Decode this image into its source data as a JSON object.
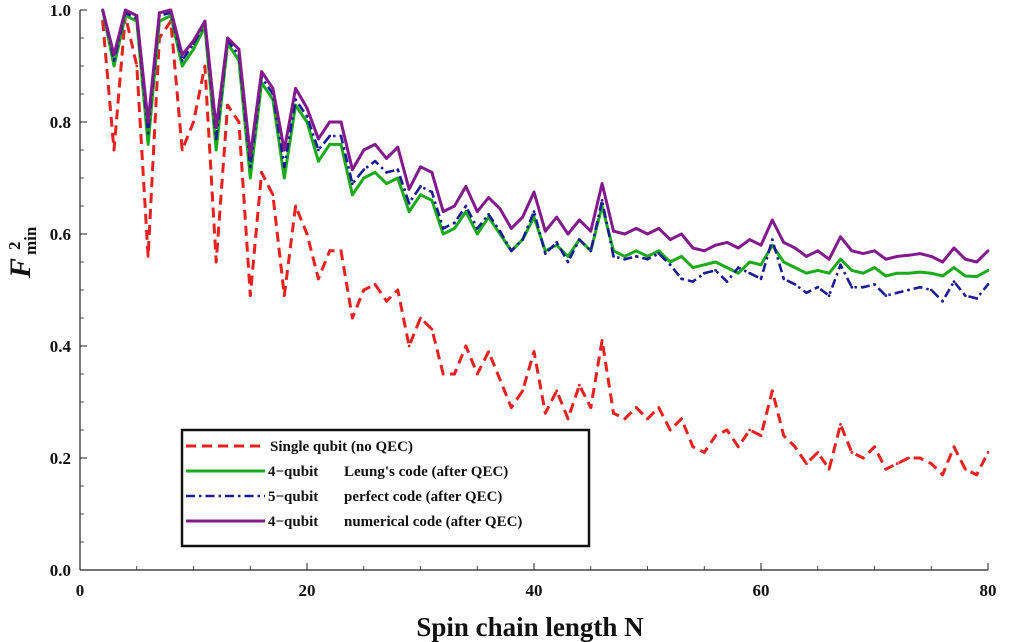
{
  "chart_data": {
    "type": "line",
    "title": "",
    "xlabel": "Spin chain length N",
    "ylabel": {
      "base": "F",
      "superscript": "2",
      "subscript": "min"
    },
    "xlim": [
      0,
      80
    ],
    "ylim": [
      0,
      1.0
    ],
    "xticks": [
      "0",
      "20",
      "40",
      "60",
      "80"
    ],
    "yticks": [
      "0.0",
      "0.2",
      "0.4",
      "0.6",
      "0.8",
      "1.0"
    ],
    "grid": false,
    "legend_position": "bottom-left",
    "x": [
      2,
      3,
      4,
      5,
      6,
      7,
      8,
      9,
      10,
      11,
      12,
      13,
      14,
      15,
      16,
      17,
      18,
      19,
      20,
      21,
      22,
      23,
      24,
      25,
      26,
      27,
      28,
      29,
      30,
      31,
      32,
      33,
      34,
      35,
      36,
      37,
      38,
      39,
      40,
      41,
      42,
      43,
      44,
      45,
      46,
      47,
      48,
      49,
      50,
      51,
      52,
      53,
      54,
      55,
      56,
      57,
      58,
      59,
      60,
      61,
      62,
      63,
      64,
      65,
      66,
      67,
      68,
      69,
      70,
      71,
      72,
      73,
      74,
      75,
      76,
      77,
      78,
      79,
      80
    ],
    "series": [
      {
        "name": "single",
        "legend": {
          "prefix": "",
          "label": "Single qubit (no QEC)"
        },
        "color": "#e8201e",
        "style": "dashed",
        "values": [
          0.98,
          0.75,
          0.99,
          0.9,
          0.56,
          0.95,
          0.98,
          0.75,
          0.8,
          0.9,
          0.55,
          0.83,
          0.8,
          0.49,
          0.71,
          0.67,
          0.49,
          0.65,
          0.6,
          0.52,
          0.57,
          0.57,
          0.45,
          0.5,
          0.51,
          0.48,
          0.5,
          0.4,
          0.45,
          0.43,
          0.35,
          0.35,
          0.4,
          0.35,
          0.39,
          0.34,
          0.29,
          0.32,
          0.39,
          0.28,
          0.32,
          0.27,
          0.33,
          0.29,
          0.41,
          0.28,
          0.27,
          0.29,
          0.27,
          0.29,
          0.25,
          0.27,
          0.22,
          0.21,
          0.24,
          0.25,
          0.22,
          0.25,
          0.24,
          0.32,
          0.24,
          0.22,
          0.19,
          0.21,
          0.18,
          0.26,
          0.21,
          0.2,
          0.22,
          0.18,
          0.19,
          0.2,
          0.2,
          0.19,
          0.17,
          0.22,
          0.18,
          0.17,
          0.21
        ]
      },
      {
        "name": "leung",
        "legend": {
          "prefix": "4−qubit",
          "label": "Leung's code (after QEC)"
        },
        "color": "#1aaa1a",
        "style": "solid",
        "values": [
          1.0,
          0.9,
          0.99,
          0.98,
          0.76,
          0.98,
          0.99,
          0.9,
          0.93,
          0.97,
          0.75,
          0.94,
          0.91,
          0.7,
          0.87,
          0.84,
          0.7,
          0.83,
          0.8,
          0.73,
          0.76,
          0.76,
          0.67,
          0.7,
          0.71,
          0.69,
          0.7,
          0.64,
          0.67,
          0.66,
          0.6,
          0.61,
          0.64,
          0.6,
          0.63,
          0.6,
          0.57,
          0.59,
          0.63,
          0.57,
          0.58,
          0.56,
          0.59,
          0.57,
          0.65,
          0.57,
          0.56,
          0.57,
          0.56,
          0.57,
          0.55,
          0.56,
          0.54,
          0.545,
          0.55,
          0.54,
          0.53,
          0.55,
          0.545,
          0.58,
          0.55,
          0.54,
          0.53,
          0.535,
          0.53,
          0.555,
          0.535,
          0.53,
          0.54,
          0.525,
          0.53,
          0.53,
          0.532,
          0.53,
          0.525,
          0.54,
          0.525,
          0.524,
          0.535
        ]
      },
      {
        "name": "perfect",
        "legend": {
          "prefix": "5−qubit",
          "label": "perfect code (after QEC)"
        },
        "color": "#1c1c96",
        "style": "dashdot",
        "values": [
          1.0,
          0.91,
          0.995,
          0.985,
          0.78,
          0.99,
          0.995,
          0.91,
          0.94,
          0.975,
          0.77,
          0.945,
          0.92,
          0.72,
          0.88,
          0.85,
          0.72,
          0.84,
          0.81,
          0.75,
          0.775,
          0.775,
          0.69,
          0.715,
          0.73,
          0.71,
          0.715,
          0.655,
          0.685,
          0.675,
          0.61,
          0.62,
          0.65,
          0.61,
          0.635,
          0.605,
          0.57,
          0.59,
          0.64,
          0.565,
          0.585,
          0.55,
          0.59,
          0.57,
          0.66,
          0.56,
          0.555,
          0.56,
          0.555,
          0.565,
          0.545,
          0.52,
          0.515,
          0.53,
          0.535,
          0.515,
          0.54,
          0.53,
          0.52,
          0.59,
          0.52,
          0.51,
          0.495,
          0.505,
          0.49,
          0.545,
          0.505,
          0.505,
          0.51,
          0.49,
          0.495,
          0.5,
          0.505,
          0.5,
          0.48,
          0.515,
          0.49,
          0.485,
          0.51
        ]
      },
      {
        "name": "numerical",
        "legend": {
          "prefix": "4−qubit",
          "label": "numerical code (after QEC)"
        },
        "color": "#82198c",
        "style": "solid",
        "values": [
          1.0,
          0.92,
          1.0,
          0.99,
          0.8,
          0.995,
          1.0,
          0.92,
          0.945,
          0.98,
          0.79,
          0.95,
          0.93,
          0.74,
          0.89,
          0.86,
          0.75,
          0.86,
          0.825,
          0.77,
          0.8,
          0.8,
          0.715,
          0.75,
          0.76,
          0.735,
          0.755,
          0.68,
          0.72,
          0.71,
          0.64,
          0.65,
          0.685,
          0.64,
          0.665,
          0.645,
          0.61,
          0.63,
          0.675,
          0.605,
          0.63,
          0.6,
          0.625,
          0.605,
          0.69,
          0.605,
          0.6,
          0.61,
          0.6,
          0.61,
          0.59,
          0.6,
          0.575,
          0.57,
          0.58,
          0.585,
          0.575,
          0.59,
          0.58,
          0.625,
          0.585,
          0.575,
          0.56,
          0.57,
          0.555,
          0.595,
          0.57,
          0.565,
          0.57,
          0.555,
          0.56,
          0.562,
          0.565,
          0.56,
          0.55,
          0.575,
          0.555,
          0.55,
          0.57
        ]
      }
    ]
  }
}
